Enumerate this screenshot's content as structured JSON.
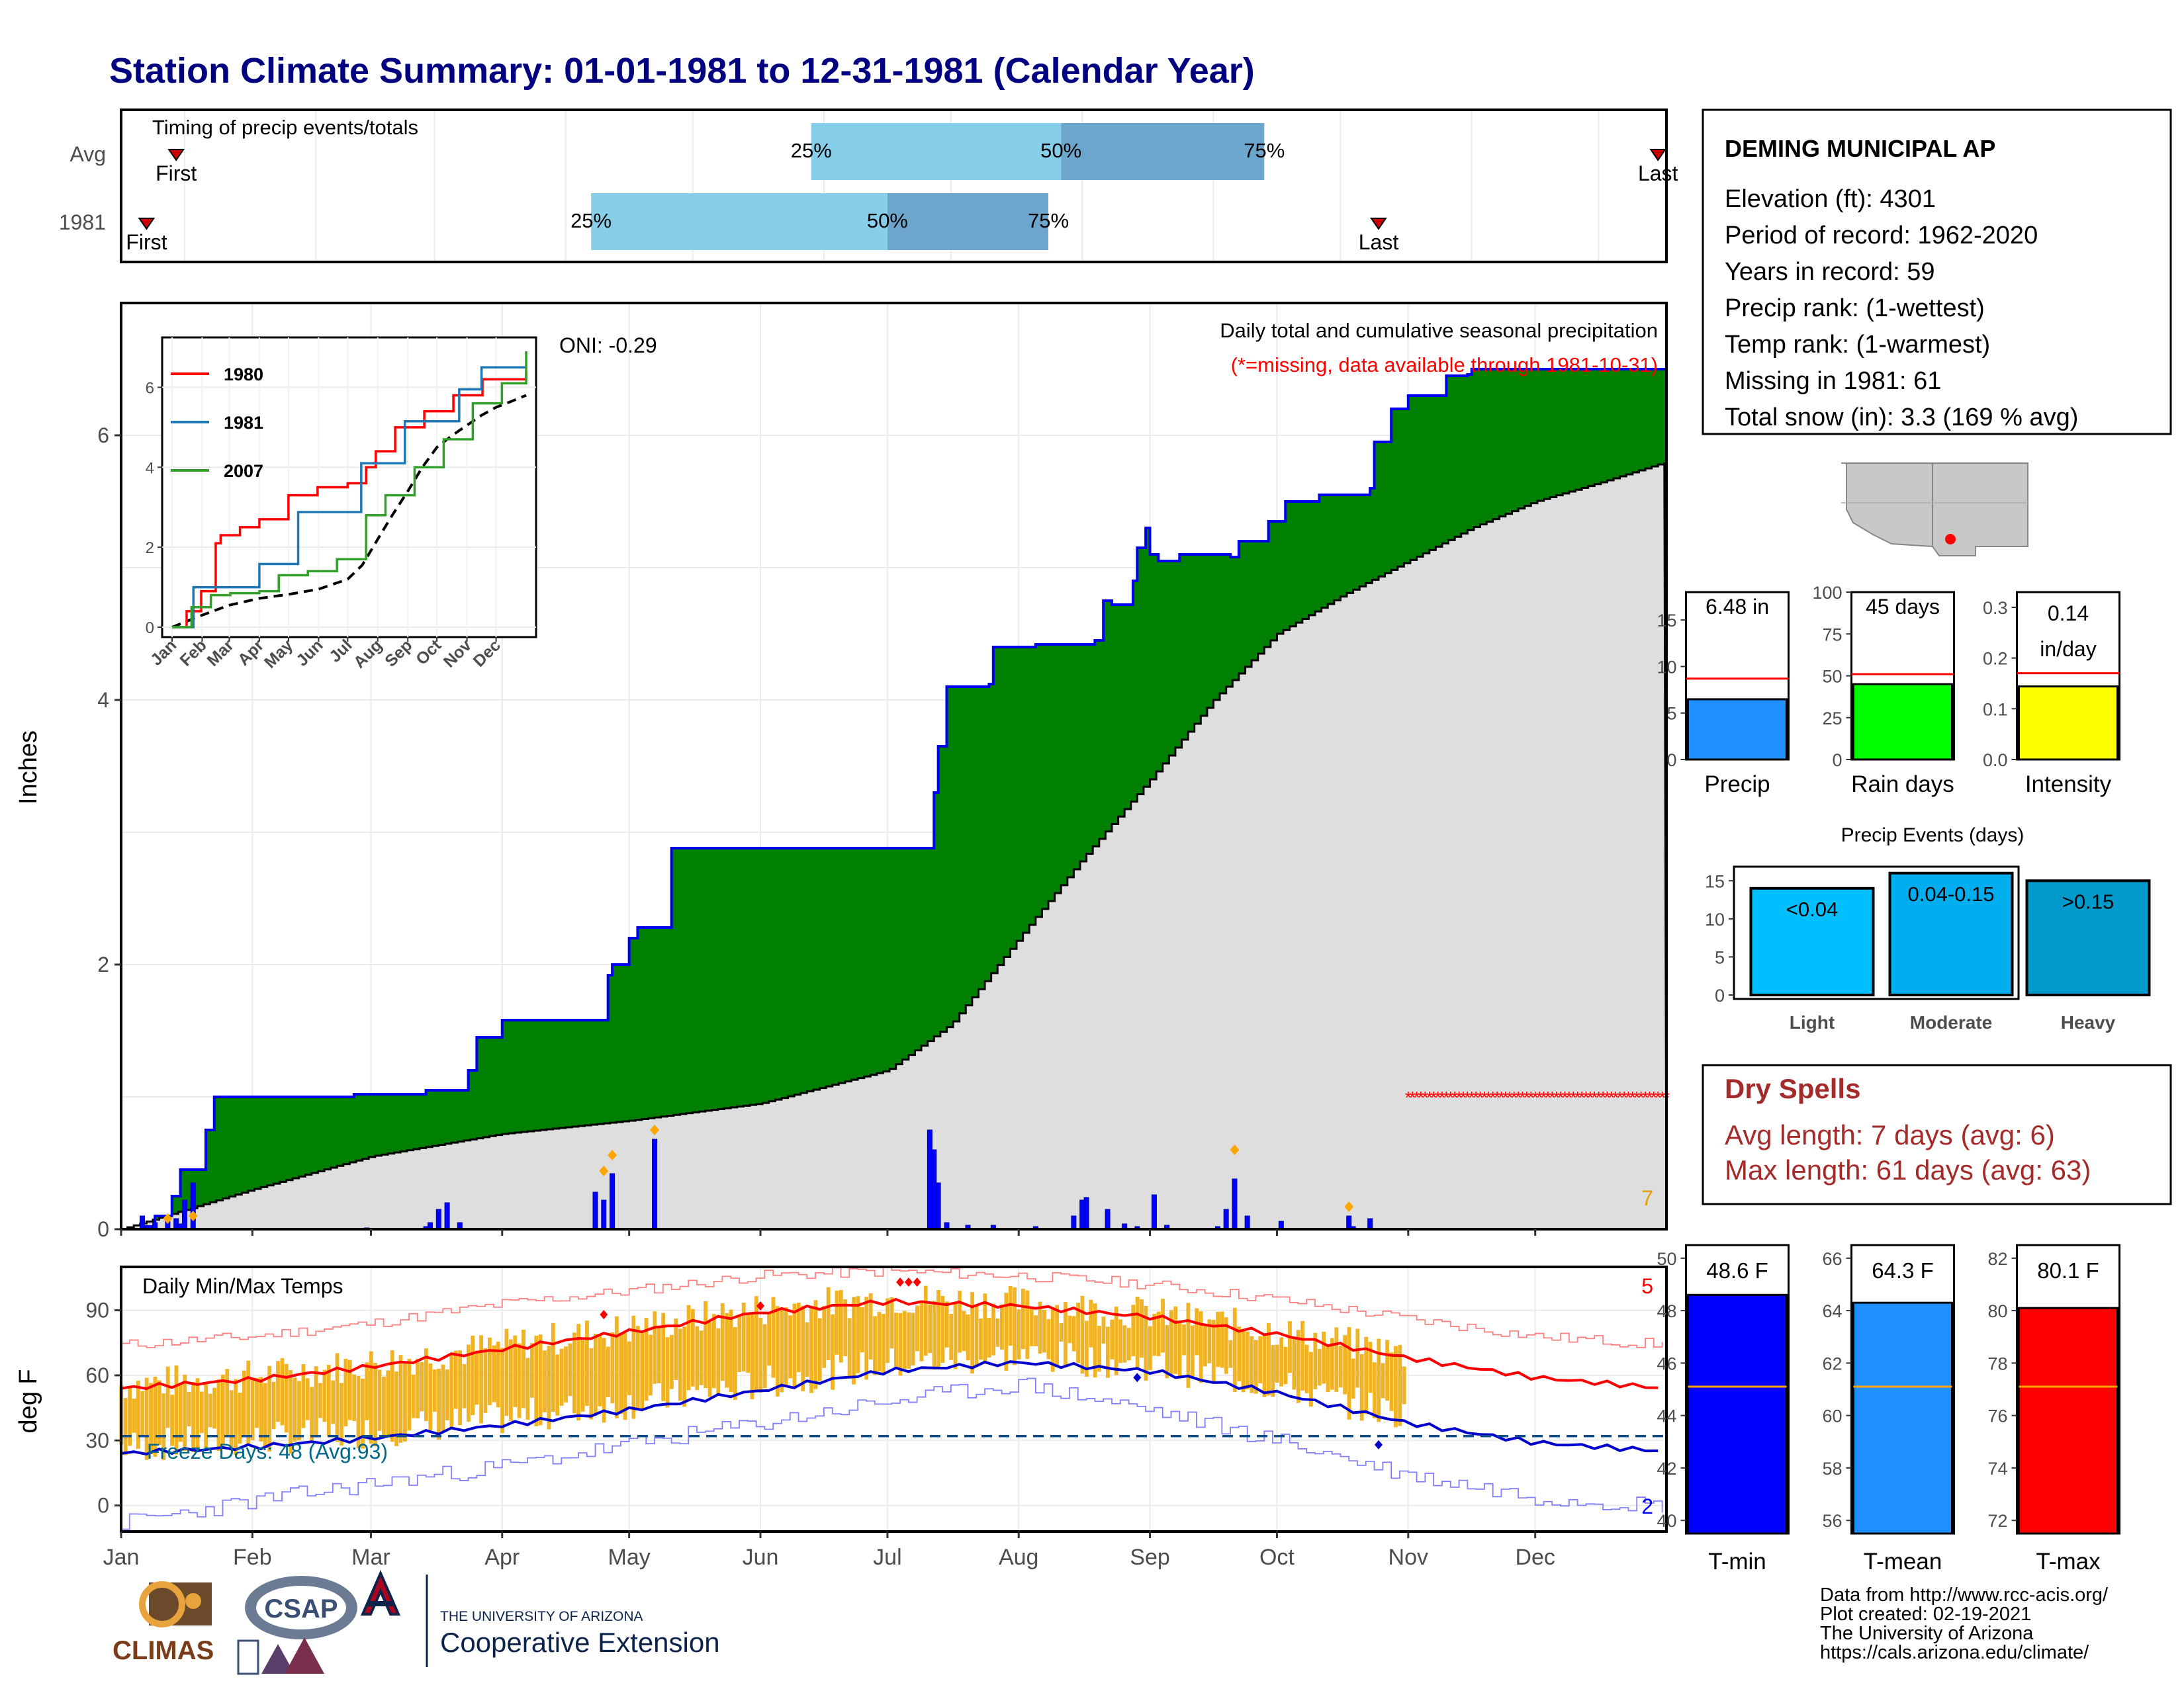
{
  "page_title": "Station Climate Summary: 01-01-1981 to 12-31-1981 (Calendar Year)",
  "timing": {
    "title": "Timing of precip events/totals",
    "rows": [
      {
        "label": "Avg",
        "first": "First",
        "last": "Last",
        "first_doy": 13,
        "last_doy": 363,
        "q25_doy": 163,
        "q50_doy": 222,
        "q75_doy": 270
      },
      {
        "label": "1981",
        "first": "First",
        "last": "Last",
        "first_doy": 6,
        "last_doy": 297,
        "q25_doy": 111,
        "q50_doy": 181,
        "q75_doy": 219
      }
    ],
    "pct_labels": [
      "25%",
      "50%",
      "75%"
    ]
  },
  "main": {
    "ylabel": "Inches",
    "header": "Daily total and cumulative seasonal precipitation",
    "missing_note": "(*=missing, data available through 1981-10-31)",
    "oni": "ONI: -0.29",
    "corner_number": "7",
    "ylim": [
      0,
      7
    ],
    "yticks": [
      "0",
      "2",
      "4",
      "6"
    ]
  },
  "inset": {
    "legend": [
      "1980",
      "1981",
      "2007"
    ],
    "months": [
      "Jan",
      "Feb",
      "Mar",
      "Apr",
      "May",
      "Jun",
      "Jul",
      "Aug",
      "Sep",
      "Oct",
      "Nov",
      "Dec"
    ],
    "yticks": [
      "0",
      "2",
      "4",
      "6"
    ]
  },
  "temps": {
    "ylabel": "deg F",
    "title": "Daily Min/Max Temps",
    "freeze": "Freeze Days: 48 (Avg:93)",
    "max_count": "5",
    "min_count": "2",
    "yticks": [
      "0",
      "30",
      "60",
      "90"
    ]
  },
  "months": [
    "Jan",
    "Feb",
    "Mar",
    "Apr",
    "May",
    "Jun",
    "Jul",
    "Aug",
    "Sep",
    "Oct",
    "Nov",
    "Dec"
  ],
  "info": {
    "station": "DEMING MUNICIPAL AP",
    "lines": [
      "Elevation (ft): 4301",
      "Period of record: 1962-2020",
      "Years in record: 59",
      "Precip rank:  (1-wettest)",
      "Temp rank:  (1-warmest)",
      "Missing in 1981: 61",
      "Total snow (in): 3.3 (169 % avg)"
    ]
  },
  "mini_bars": [
    {
      "label": "Precip",
      "value_text": "6.48 in",
      "value": 6.48,
      "avg": 8.7,
      "ymax": 18,
      "yticks": [
        "0",
        "5",
        "10",
        "15"
      ],
      "color": "#1e90ff"
    },
    {
      "label": "Rain days",
      "value_text": "45 days",
      "value": 45,
      "avg": 51,
      "ymax": 100,
      "yticks": [
        "0",
        "25",
        "50",
        "75",
        "100"
      ],
      "color": "#00ff00"
    },
    {
      "label": "Intensity",
      "value_text": "0.14 in/day",
      "value_line1": "0.14",
      "value_line2": "in/day",
      "value": 0.144,
      "avg": 0.17,
      "ymax": 0.33,
      "yticks": [
        "0.0",
        "0.1",
        "0.2",
        "0.3"
      ],
      "color": "#ffff00"
    }
  ],
  "precip_events": {
    "title": "Precip Events (days)",
    "bars": [
      {
        "label": "Light",
        "range": "<0.04",
        "value": 14,
        "color": "#00bfff"
      },
      {
        "label": "Moderate",
        "range": "0.04-0.15",
        "value": 16,
        "color": "#00aeef"
      },
      {
        "label": "Heavy",
        "range": ">0.15",
        "value": 15,
        "color": "#009acd"
      }
    ],
    "yticks": [
      "0",
      "5",
      "10",
      "15"
    ]
  },
  "dry_spells": {
    "title": "Dry Spells",
    "avg": "Avg length: 7 days (avg: 6)",
    "max": "Max length: 61 days (avg: 63)"
  },
  "temp_bars": [
    {
      "label": "T-min",
      "value_text": "48.6 F",
      "value": 48.6,
      "avg": 45.1,
      "ymin": 39.5,
      "ymax": 50.5,
      "yticks": [
        "40",
        "42",
        "44",
        "46",
        "48",
        "50"
      ],
      "color": "#0000ff"
    },
    {
      "label": "T-mean",
      "value_text": "64.3 F",
      "value": 64.3,
      "avg": 61.1,
      "ymin": 55.5,
      "ymax": 66.5,
      "yticks": [
        "56",
        "58",
        "60",
        "62",
        "64",
        "66"
      ],
      "color": "#1e90ff"
    },
    {
      "label": "T-max",
      "value_text": "80.1 F",
      "value": 80.1,
      "avg": 77.1,
      "ymin": 71.5,
      "ymax": 82.5,
      "yticks": [
        "72",
        "74",
        "76",
        "78",
        "80",
        "82"
      ],
      "color": "#ff0000"
    }
  ],
  "footer": {
    "lines": [
      "Data from http://www.rcc-acis.org/",
      "Plot created: 02-19-2021",
      "The University of Arizona",
      "https://cals.arizona.edu/climate/"
    ],
    "climas": "CLIMAS",
    "csap": "CSAP",
    "ua_small": "THE UNIVERSITY OF ARIZONA",
    "ua_big": "Cooperative Extension"
  },
  "chart_data": {
    "type": "area",
    "title": "Daily total and cumulative seasonal precipitation",
    "ylabel": "Inches",
    "ylim": [
      0,
      7
    ],
    "cumulative_1981_steps": [
      [
        0,
        0
      ],
      [
        5,
        0.02
      ],
      [
        8,
        0.1
      ],
      [
        12,
        0.25
      ],
      [
        14,
        0.45
      ],
      [
        20,
        0.75
      ],
      [
        22,
        1.0
      ],
      [
        45,
        1.0
      ],
      [
        55,
        1.02
      ],
      [
        70,
        1.02
      ],
      [
        72,
        1.05
      ],
      [
        82,
        1.2
      ],
      [
        84,
        1.45
      ],
      [
        90,
        1.58
      ],
      [
        112,
        1.58
      ],
      [
        115,
        1.92
      ],
      [
        116,
        2.0
      ],
      [
        120,
        2.2
      ],
      [
        122,
        2.28
      ],
      [
        130,
        2.88
      ],
      [
        191,
        2.88
      ],
      [
        192,
        3.3
      ],
      [
        193,
        3.65
      ],
      [
        195,
        4.1
      ],
      [
        205,
        4.12
      ],
      [
        206,
        4.4
      ],
      [
        216,
        4.42
      ],
      [
        230,
        4.45
      ],
      [
        232,
        4.75
      ],
      [
        234,
        4.72
      ],
      [
        239,
        4.9
      ],
      [
        240,
        5.15
      ],
      [
        242,
        5.3
      ],
      [
        243,
        5.1
      ],
      [
        245,
        5.05
      ],
      [
        250,
        5.1
      ],
      [
        262,
        5.08
      ],
      [
        264,
        5.2
      ],
      [
        271,
        5.35
      ],
      [
        275,
        5.5
      ],
      [
        283,
        5.55
      ],
      [
        295,
        5.6
      ],
      [
        296,
        5.95
      ],
      [
        300,
        6.2
      ],
      [
        304,
        6.3
      ],
      [
        313,
        6.45
      ],
      [
        318,
        6.46
      ],
      [
        319,
        6.5
      ],
      [
        365,
        6.5
      ]
    ],
    "cumulative_average": [
      [
        0,
        0
      ],
      [
        31,
        0.3
      ],
      [
        59,
        0.55
      ],
      [
        90,
        0.72
      ],
      [
        120,
        0.82
      ],
      [
        151,
        0.95
      ],
      [
        181,
        1.2
      ],
      [
        196,
        1.55
      ],
      [
        212,
        2.2
      ],
      [
        227,
        2.8
      ],
      [
        243,
        3.4
      ],
      [
        258,
        4.0
      ],
      [
        273,
        4.5
      ],
      [
        289,
        4.8
      ],
      [
        304,
        5.05
      ],
      [
        319,
        5.3
      ],
      [
        334,
        5.5
      ],
      [
        350,
        5.65
      ],
      [
        365,
        5.8
      ]
    ],
    "daily_precip_1981": [
      [
        5,
        0.1
      ],
      [
        8,
        0.05
      ],
      [
        11,
        0.06
      ],
      [
        13,
        0.08
      ],
      [
        14,
        0.04
      ],
      [
        15,
        0.22
      ],
      [
        17,
        0.35
      ],
      [
        58,
        0.01
      ],
      [
        72,
        0.02
      ],
      [
        73,
        0.05
      ],
      [
        75,
        0.15
      ],
      [
        77,
        0.2
      ],
      [
        80,
        0.05
      ],
      [
        112,
        0.28
      ],
      [
        114,
        0.22
      ],
      [
        116,
        0.42
      ],
      [
        126,
        0.68
      ],
      [
        191,
        0.75
      ],
      [
        192,
        0.6
      ],
      [
        193,
        0.35
      ],
      [
        195,
        0.05
      ],
      [
        200,
        0.03
      ],
      [
        206,
        0.03
      ],
      [
        216,
        0.02
      ],
      [
        225,
        0.1
      ],
      [
        227,
        0.22
      ],
      [
        228,
        0.24
      ],
      [
        233,
        0.15
      ],
      [
        237,
        0.04
      ],
      [
        240,
        0.02
      ],
      [
        244,
        0.26
      ],
      [
        247,
        0.03
      ],
      [
        259,
        0.02
      ],
      [
        261,
        0.15
      ],
      [
        263,
        0.38
      ],
      [
        266,
        0.1
      ],
      [
        274,
        0.06
      ],
      [
        290,
        0.1
      ],
      [
        291,
        0.02
      ],
      [
        295,
        0.08
      ]
    ],
    "missing_range_doy": [
      304,
      365
    ],
    "inset_series": [
      {
        "name": "1980",
        "points": [
          [
            0,
            0
          ],
          [
            15,
            0.4
          ],
          [
            30,
            0.9
          ],
          [
            45,
            2.1
          ],
          [
            50,
            2.3
          ],
          [
            60,
            2.3
          ],
          [
            70,
            2.5
          ],
          [
            90,
            2.7
          ],
          [
            120,
            3.3
          ],
          [
            150,
            3.5
          ],
          [
            181,
            3.6
          ],
          [
            200,
            4.0
          ],
          [
            210,
            4.4
          ],
          [
            230,
            5.0
          ],
          [
            260,
            5.4
          ],
          [
            290,
            5.8
          ],
          [
            320,
            6.2
          ],
          [
            365,
            6.4
          ]
        ]
      },
      {
        "name": "1981",
        "points": [
          [
            0,
            0
          ],
          [
            22,
            1.0
          ],
          [
            90,
            1.58
          ],
          [
            130,
            2.88
          ],
          [
            191,
            2.88
          ],
          [
            195,
            4.1
          ],
          [
            240,
            5.15
          ],
          [
            296,
            5.95
          ],
          [
            319,
            6.5
          ],
          [
            365,
            6.5
          ]
        ]
      },
      {
        "name": "2007",
        "points": [
          [
            0,
            0
          ],
          [
            20,
            0.5
          ],
          [
            40,
            0.8
          ],
          [
            60,
            0.85
          ],
          [
            90,
            0.9
          ],
          [
            110,
            1.3
          ],
          [
            140,
            1.4
          ],
          [
            170,
            1.7
          ],
          [
            200,
            2.8
          ],
          [
            220,
            3.3
          ],
          [
            250,
            4.0
          ],
          [
            280,
            4.7
          ],
          [
            310,
            5.6
          ],
          [
            340,
            6.1
          ],
          [
            365,
            6.9
          ]
        ]
      }
    ],
    "temperature": {
      "ylim": [
        -12,
        110
      ],
      "avg_max": [
        [
          0,
          54
        ],
        [
          31,
          58
        ],
        [
          59,
          64
        ],
        [
          90,
          72
        ],
        [
          120,
          80
        ],
        [
          151,
          89
        ],
        [
          181,
          94
        ],
        [
          212,
          92
        ],
        [
          243,
          87
        ],
        [
          273,
          79
        ],
        [
          304,
          68
        ],
        [
          334,
          59
        ],
        [
          365,
          54
        ]
      ],
      "avg_min": [
        [
          0,
          24
        ],
        [
          31,
          27
        ],
        [
          59,
          31
        ],
        [
          90,
          37
        ],
        [
          120,
          44
        ],
        [
          151,
          53
        ],
        [
          181,
          62
        ],
        [
          212,
          66
        ],
        [
          243,
          62
        ],
        [
          273,
          52
        ],
        [
          304,
          38
        ],
        [
          334,
          29
        ],
        [
          365,
          25
        ]
      ],
      "record_max": [
        [
          0,
          74
        ],
        [
          31,
          78
        ],
        [
          59,
          84
        ],
        [
          90,
          93
        ],
        [
          120,
          99
        ],
        [
          151,
          106
        ],
        [
          181,
          108
        ],
        [
          212,
          106
        ],
        [
          243,
          102
        ],
        [
          273,
          95
        ],
        [
          304,
          86
        ],
        [
          334,
          78
        ],
        [
          365,
          74
        ]
      ],
      "record_min": [
        [
          0,
          -8
        ],
        [
          31,
          2
        ],
        [
          59,
          10
        ],
        [
          90,
          18
        ],
        [
          120,
          28
        ],
        [
          151,
          38
        ],
        [
          181,
          48
        ],
        [
          212,
          56
        ],
        [
          243,
          44
        ],
        [
          273,
          30
        ],
        [
          304,
          14
        ],
        [
          334,
          4
        ],
        [
          365,
          0
        ]
      ],
      "freeze_line": 32
    },
    "x_axis": "Jan-Dec 1981"
  }
}
